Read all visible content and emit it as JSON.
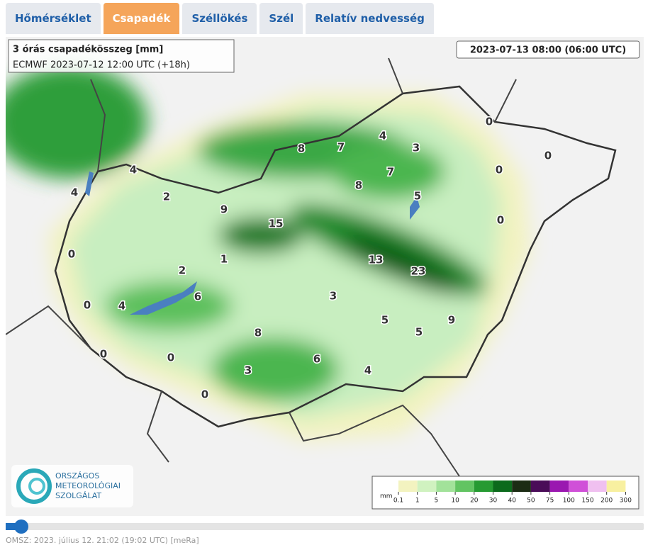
{
  "tabs": [
    "Hőmérséklet",
    "Csapadék",
    "Széllökés",
    "Szél",
    "Relatív nedvesség"
  ],
  "map": {
    "title": "3 órás csapadékösszeg [mm]",
    "model": "ECMWF 2023-07-12 12:00 UTC (+18h)",
    "valid_time": "2023-07-13 08:00 (06:00 UTC)",
    "values": [
      8,
      7,
      4,
      3,
      0,
      0,
      4,
      4,
      2,
      7,
      8,
      5,
      0,
      9,
      15,
      0,
      0,
      1,
      13,
      23,
      2,
      6,
      3,
      0,
      4,
      5,
      9,
      5,
      8,
      0,
      0,
      6,
      3,
      4,
      0
    ],
    "legend": {
      "unit": "mm",
      "ticks": [
        0.1,
        1,
        5,
        10,
        20,
        30,
        40,
        50,
        75,
        100,
        150,
        200,
        300
      ],
      "colors": [
        "#f3f3c0",
        "#d0f2c0",
        "#a2e29a",
        "#62c462",
        "#269a32",
        "#0c6a1c",
        "#1c2c14",
        "#4a0c58",
        "#9a18b0",
        "#d050d8",
        "#f0c0f0",
        "#f8f0a0"
      ]
    },
    "logo": [
      "ORSZÁGOS",
      "METEOROLÓGIAI",
      "SZOLGÁLAT"
    ]
  },
  "footer": "OMSZ: 2023. július 12. 21:02 (19:02 UTC) [meRa]"
}
